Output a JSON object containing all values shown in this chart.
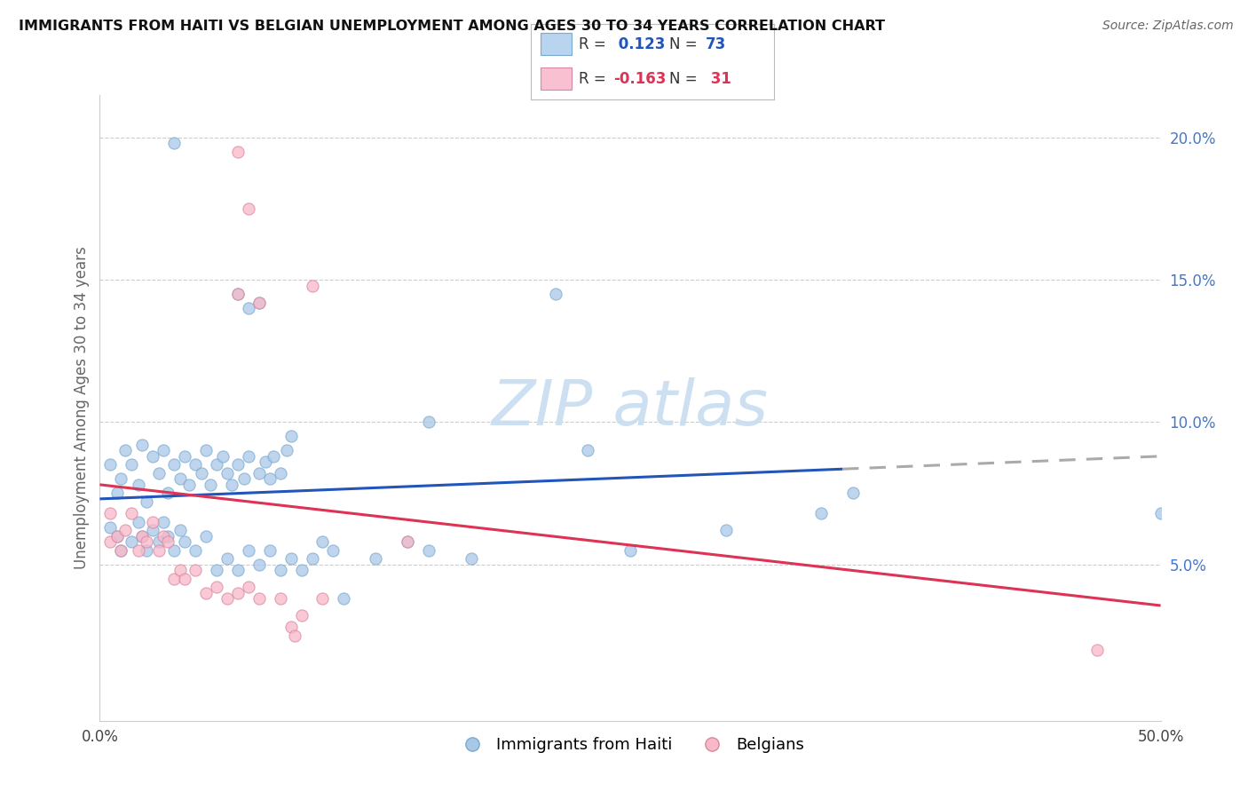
{
  "title": "IMMIGRANTS FROM HAITI VS BELGIAN UNEMPLOYMENT AMONG AGES 30 TO 34 YEARS CORRELATION CHART",
  "source": "Source: ZipAtlas.com",
  "ylabel": "Unemployment Among Ages 30 to 34 years",
  "xlim": [
    0.0,
    0.5
  ],
  "ylim": [
    -0.005,
    0.215
  ],
  "yticks": [
    0.05,
    0.1,
    0.15,
    0.2
  ],
  "ytick_labels": [
    "5.0%",
    "10.0%",
    "15.0%",
    "20.0%"
  ],
  "xtick_labels_show": [
    "0.0%",
    "50.0%"
  ],
  "xtick_positions_show": [
    0.0,
    0.5
  ],
  "blue_color": "#a8c8e8",
  "blue_edge_color": "#7aaad0",
  "pink_color": "#f8b8c8",
  "pink_edge_color": "#d888a0",
  "trend_blue_color": "#2255bb",
  "trend_pink_color": "#dd3355",
  "trend_gray_color": "#aaaaaa",
  "watermark_color": "#c8ddf0",
  "legend_blue_face": "#b8d4ee",
  "legend_pink_face": "#f8c0d0",
  "r_blue_text": "0.123",
  "n_blue_text": "73",
  "r_pink_text": "-0.163",
  "n_pink_text": "31",
  "blue_scatter": [
    [
      0.005,
      0.085
    ],
    [
      0.008,
      0.075
    ],
    [
      0.01,
      0.08
    ],
    [
      0.012,
      0.09
    ],
    [
      0.015,
      0.085
    ],
    [
      0.018,
      0.078
    ],
    [
      0.02,
      0.092
    ],
    [
      0.022,
      0.072
    ],
    [
      0.025,
      0.088
    ],
    [
      0.028,
      0.082
    ],
    [
      0.03,
      0.09
    ],
    [
      0.032,
      0.075
    ],
    [
      0.035,
      0.085
    ],
    [
      0.038,
      0.08
    ],
    [
      0.04,
      0.088
    ],
    [
      0.042,
      0.078
    ],
    [
      0.045,
      0.085
    ],
    [
      0.048,
      0.082
    ],
    [
      0.05,
      0.09
    ],
    [
      0.052,
      0.078
    ],
    [
      0.055,
      0.085
    ],
    [
      0.058,
      0.088
    ],
    [
      0.06,
      0.082
    ],
    [
      0.062,
      0.078
    ],
    [
      0.065,
      0.085
    ],
    [
      0.068,
      0.08
    ],
    [
      0.07,
      0.088
    ],
    [
      0.075,
      0.082
    ],
    [
      0.078,
      0.086
    ],
    [
      0.08,
      0.08
    ],
    [
      0.082,
      0.088
    ],
    [
      0.085,
      0.082
    ],
    [
      0.088,
      0.09
    ],
    [
      0.09,
      0.095
    ],
    [
      0.005,
      0.063
    ],
    [
      0.008,
      0.06
    ],
    [
      0.01,
      0.055
    ],
    [
      0.015,
      0.058
    ],
    [
      0.018,
      0.065
    ],
    [
      0.02,
      0.06
    ],
    [
      0.022,
      0.055
    ],
    [
      0.025,
      0.062
    ],
    [
      0.028,
      0.058
    ],
    [
      0.03,
      0.065
    ],
    [
      0.032,
      0.06
    ],
    [
      0.035,
      0.055
    ],
    [
      0.038,
      0.062
    ],
    [
      0.04,
      0.058
    ],
    [
      0.045,
      0.055
    ],
    [
      0.05,
      0.06
    ],
    [
      0.055,
      0.048
    ],
    [
      0.06,
      0.052
    ],
    [
      0.065,
      0.048
    ],
    [
      0.07,
      0.055
    ],
    [
      0.075,
      0.05
    ],
    [
      0.08,
      0.055
    ],
    [
      0.085,
      0.048
    ],
    [
      0.09,
      0.052
    ],
    [
      0.095,
      0.048
    ],
    [
      0.1,
      0.052
    ],
    [
      0.105,
      0.058
    ],
    [
      0.11,
      0.055
    ],
    [
      0.115,
      0.038
    ],
    [
      0.13,
      0.052
    ],
    [
      0.145,
      0.058
    ],
    [
      0.155,
      0.055
    ],
    [
      0.175,
      0.052
    ],
    [
      0.23,
      0.09
    ],
    [
      0.25,
      0.055
    ],
    [
      0.295,
      0.062
    ],
    [
      0.34,
      0.068
    ],
    [
      0.355,
      0.075
    ],
    [
      0.5,
      0.068
    ]
  ],
  "pink_scatter": [
    [
      0.005,
      0.068
    ],
    [
      0.005,
      0.058
    ],
    [
      0.008,
      0.06
    ],
    [
      0.01,
      0.055
    ],
    [
      0.012,
      0.062
    ],
    [
      0.015,
      0.068
    ],
    [
      0.018,
      0.055
    ],
    [
      0.02,
      0.06
    ],
    [
      0.022,
      0.058
    ],
    [
      0.025,
      0.065
    ],
    [
      0.028,
      0.055
    ],
    [
      0.03,
      0.06
    ],
    [
      0.032,
      0.058
    ],
    [
      0.035,
      0.045
    ],
    [
      0.038,
      0.048
    ],
    [
      0.04,
      0.045
    ],
    [
      0.045,
      0.048
    ],
    [
      0.05,
      0.04
    ],
    [
      0.055,
      0.042
    ],
    [
      0.06,
      0.038
    ],
    [
      0.065,
      0.04
    ],
    [
      0.07,
      0.042
    ],
    [
      0.075,
      0.038
    ],
    [
      0.085,
      0.038
    ],
    [
      0.09,
      0.028
    ],
    [
      0.092,
      0.025
    ],
    [
      0.095,
      0.032
    ],
    [
      0.105,
      0.038
    ],
    [
      0.145,
      0.058
    ],
    [
      0.065,
      0.145
    ],
    [
      0.47,
      0.02
    ]
  ],
  "blue_outliers": [
    [
      0.035,
      0.198
    ],
    [
      0.065,
      0.145
    ],
    [
      0.155,
      0.1
    ],
    [
      0.07,
      0.14
    ],
    [
      0.215,
      0.145
    ],
    [
      0.075,
      0.142
    ]
  ],
  "pink_outliers": [
    [
      0.065,
      0.195
    ],
    [
      0.07,
      0.175
    ],
    [
      0.1,
      0.148
    ],
    [
      0.075,
      0.142
    ]
  ]
}
